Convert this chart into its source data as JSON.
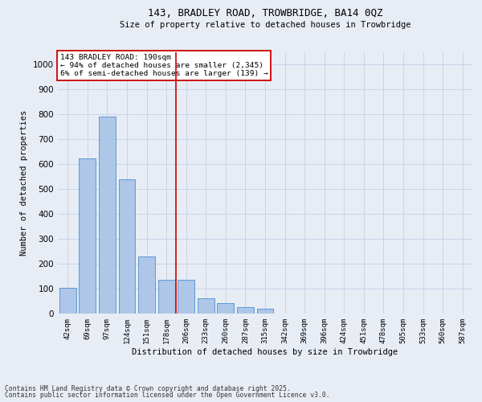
{
  "title_line1": "143, BRADLEY ROAD, TROWBRIDGE, BA14 0QZ",
  "title_line2": "Size of property relative to detached houses in Trowbridge",
  "xlabel": "Distribution of detached houses by size in Trowbridge",
  "ylabel": "Number of detached properties",
  "categories": [
    "42sqm",
    "69sqm",
    "97sqm",
    "124sqm",
    "151sqm",
    "178sqm",
    "206sqm",
    "233sqm",
    "260sqm",
    "287sqm",
    "315sqm",
    "342sqm",
    "369sqm",
    "396sqm",
    "424sqm",
    "451sqm",
    "478sqm",
    "505sqm",
    "533sqm",
    "560sqm",
    "587sqm"
  ],
  "values": [
    105,
    625,
    790,
    540,
    230,
    135,
    135,
    60,
    42,
    25,
    20,
    0,
    0,
    0,
    0,
    0,
    0,
    0,
    0,
    0,
    0
  ],
  "bar_color": "#aec6e8",
  "bar_edge_color": "#5b9bd5",
  "grid_color": "#c8d4e8",
  "bg_color": "#e8edf5",
  "annotation_box_color": "#ffffff",
  "annotation_border_color": "#cc0000",
  "annotation_text_line1": "143 BRADLEY ROAD: 190sqm",
  "annotation_text_line2": "← 94% of detached houses are smaller (2,345)",
  "annotation_text_line3": "6% of semi-detached houses are larger (139) →",
  "footnote_line1": "Contains HM Land Registry data © Crown copyright and database right 2025.",
  "footnote_line2": "Contains public sector information licensed under the Open Government Licence v3.0.",
  "ylim": [
    0,
    1050
  ],
  "yticks": [
    0,
    100,
    200,
    300,
    400,
    500,
    600,
    700,
    800,
    900,
    1000
  ],
  "red_line_x": 5.5
}
